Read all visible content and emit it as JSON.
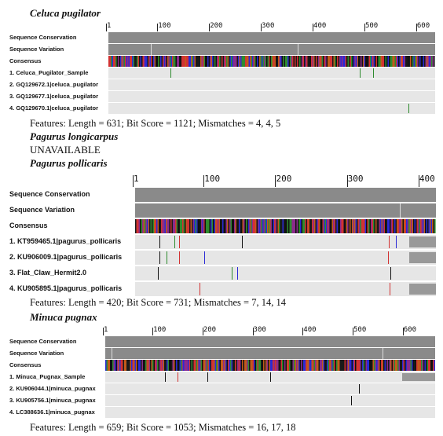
{
  "sections": [
    {
      "species": "Celuca pugilator",
      "ruler_ticks": [
        "1",
        "100",
        "200",
        "300",
        "400",
        "500",
        "600"
      ],
      "track_labels": [
        "Sequence Conservation",
        "Sequence Variation",
        "Consensus"
      ],
      "sequences": [
        "1. Celuca_Pugilator_Sample",
        "2. GQ129672.1|celuca_pugilator",
        "3. GQ129677.1|celuca_pugilator",
        "4. GQ129670.1|celuca_pugilator"
      ],
      "features": "Features: Length = 631; Bit Score = 1121; Mismatches = 4, 4, 5"
    },
    {
      "species": "Pagurus longicarpus",
      "status": "UNAVAILABLE"
    },
    {
      "species": "Pagurus pollicaris",
      "ruler_ticks": [
        "1",
        "100",
        "200",
        "300",
        "400"
      ],
      "track_labels": [
        "Sequence Conservation",
        "Sequence Variation",
        "Consensus"
      ],
      "sequences": [
        "1. KT959465.1|pagurus_pollicaris",
        "2. KU906009.1|pagurus_pollicaris",
        "3. Flat_Claw_Hermit2.0",
        "4. KU905895.1|pagurus_pollicaris"
      ],
      "features": "Features: Length = 420; Bit Score = 731; Mismatches = 7, 14, 14"
    },
    {
      "species": "Minuca pugnax",
      "ruler_ticks": [
        "1",
        "100",
        "200",
        "300",
        "400",
        "500",
        "600"
      ],
      "track_labels": [
        "Sequence Conservation",
        "Sequence Variation",
        "Consensus"
      ],
      "sequences": [
        "1. Minuca_Pugnax_Sample",
        "2. KU906044.1|minuca_pugnax",
        "3. KU905756.1|minuca_pugnax",
        "4. LC388636.1|minuca_pugnax"
      ],
      "features": "Features: Length = 659; Bit Score = 1053; Mismatches = 16, 17, 18"
    }
  ],
  "colors": {
    "conservation": "#8a8a8a",
    "row_bg": "#e6e6e6",
    "base_a": "#2e8b2e",
    "base_c": "#2a2ad6",
    "base_g": "#111111",
    "base_t": "#d23232",
    "gap": "#888888"
  }
}
